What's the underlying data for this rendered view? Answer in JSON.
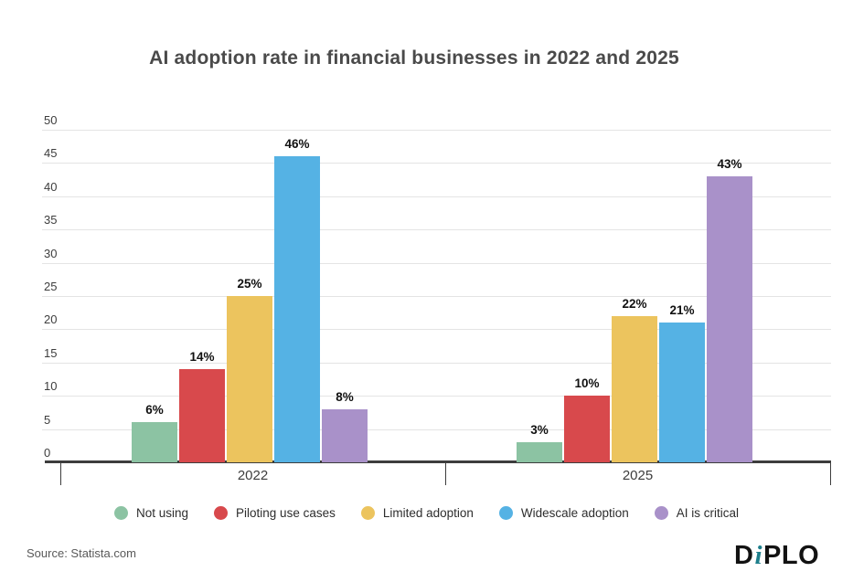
{
  "title": "AI adoption rate in financial businesses in 2022 and 2025",
  "source": "Source: Statista.com",
  "logo": {
    "part_d": "D",
    "part_i": "i",
    "part_plo": "PLO"
  },
  "colors": {
    "title": "#4a4a4a",
    "axis": "#3d3d3d",
    "grid": "#e4e4e4",
    "tick_label": "#3d3d3d",
    "value_label": "#111111",
    "legend_text": "#2d2d2d",
    "source_text": "#595959",
    "logo_black": "#121212",
    "logo_teal": "#1e7f8c",
    "background": "#ffffff"
  },
  "chart_data": {
    "type": "bar",
    "title": "AI adoption rate in financial businesses in 2022 and 2025",
    "categories": [
      "2022",
      "2025"
    ],
    "series": [
      {
        "name": "Not using",
        "color": "#8cc3a3",
        "values": [
          6,
          3
        ]
      },
      {
        "name": "Piloting use cases",
        "color": "#d8494c",
        "values": [
          14,
          10
        ]
      },
      {
        "name": "Limited adoption",
        "color": "#ecc45e",
        "values": [
          25,
          22
        ]
      },
      {
        "name": "Widescale adoption",
        "color": "#55b2e4",
        "values": [
          46,
          21
        ]
      },
      {
        "name": "AI is critical",
        "color": "#a991c9",
        "values": [
          8,
          43
        ]
      }
    ],
    "value_suffix": "%",
    "ylim": [
      0,
      50
    ],
    "ytick_step": 5,
    "grid": true,
    "legend_position": "bottom"
  }
}
